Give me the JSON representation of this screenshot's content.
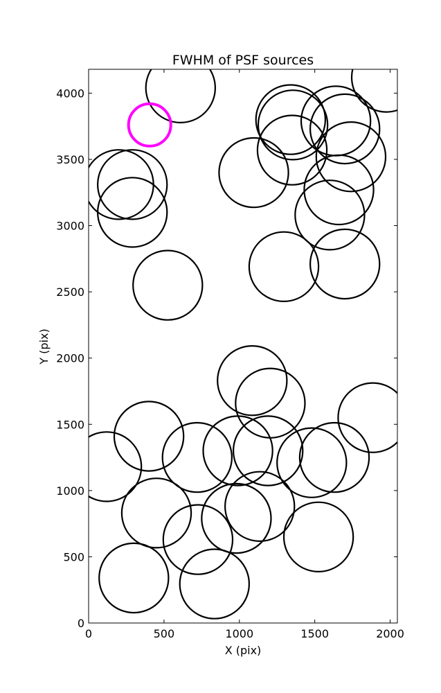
{
  "chart_data": {
    "type": "scatter",
    "title": "FWHM of PSF sources",
    "xlabel": "X (pix)",
    "ylabel": "Y (pix)",
    "xlim": [
      0,
      2048
    ],
    "ylim": [
      0,
      4180
    ],
    "xticks": [
      0,
      500,
      1000,
      1500,
      2000
    ],
    "yticks": [
      0,
      500,
      1000,
      1500,
      2000,
      2500,
      3000,
      3500,
      4000
    ],
    "grid": false,
    "marker": "open circle",
    "circle_radius_pix": 230,
    "colors": {
      "default": "#000000",
      "highlight": "#ff00ff"
    },
    "series": [
      {
        "points": [
          {
            "x": 610,
            "y": 4040
          },
          {
            "x": 1975,
            "y": 4120
          },
          {
            "x": 1340,
            "y": 3800
          },
          {
            "x": 1355,
            "y": 3760
          },
          {
            "x": 1640,
            "y": 3790
          },
          {
            "x": 1700,
            "y": 3730
          },
          {
            "x": 1350,
            "y": 3570
          },
          {
            "x": 1740,
            "y": 3520
          },
          {
            "x": 1095,
            "y": 3400
          },
          {
            "x": 200,
            "y": 3310
          },
          {
            "x": 290,
            "y": 3310
          },
          {
            "x": 1660,
            "y": 3270
          },
          {
            "x": 290,
            "y": 3100
          },
          {
            "x": 1600,
            "y": 3080
          },
          {
            "x": 1700,
            "y": 2710
          },
          {
            "x": 1295,
            "y": 2690
          },
          {
            "x": 525,
            "y": 2550
          },
          {
            "x": 1085,
            "y": 1830
          },
          {
            "x": 1205,
            "y": 1660
          },
          {
            "x": 1885,
            "y": 1550
          },
          {
            "x": 400,
            "y": 1410
          },
          {
            "x": 120,
            "y": 1180
          },
          {
            "x": 720,
            "y": 1250
          },
          {
            "x": 990,
            "y": 1300
          },
          {
            "x": 1190,
            "y": 1300
          },
          {
            "x": 1480,
            "y": 1210
          },
          {
            "x": 1630,
            "y": 1250
          },
          {
            "x": 1135,
            "y": 880
          },
          {
            "x": 450,
            "y": 830
          },
          {
            "x": 980,
            "y": 790
          },
          {
            "x": 725,
            "y": 630
          },
          {
            "x": 1525,
            "y": 650
          },
          {
            "x": 300,
            "y": 340
          },
          {
            "x": 835,
            "y": 295
          }
        ]
      },
      {
        "highlight": true,
        "points": [
          {
            "x": 405,
            "y": 3760,
            "radius_pix": 140
          }
        ]
      }
    ]
  }
}
